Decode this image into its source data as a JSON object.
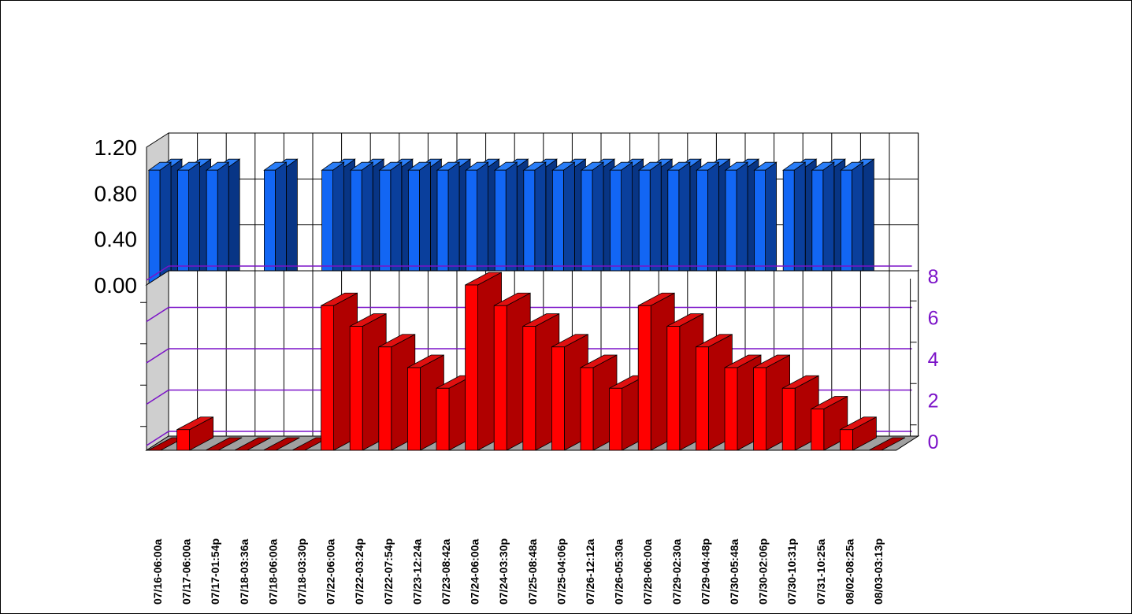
{
  "colors": {
    "top_front": "#1266f4",
    "top_side": "#0a3f9c",
    "top_top": "#2a7ef8",
    "bottom_front": "#ff0000",
    "bottom_side": "#b00000",
    "bottom_top": "#e01010",
    "bottom_axis": "#7b12c8",
    "wall": "#cfcfcf",
    "floor": "#a0a0a0"
  },
  "chart_data": [
    {
      "type": "bar",
      "style": "3d",
      "panel": "top",
      "categories": [
        "07/16-06:00a",
        "07/17-06:00a",
        "07/17-01:54p",
        "07/18-03:36a",
        "07/18-06:00a",
        "07/18-03:30p",
        "07/22-06:00a",
        "07/22-03:24p",
        "07/22-07:54p",
        "07/23-12:24a",
        "07/23-08:42a",
        "07/24-06:00a",
        "07/24-03:30p",
        "07/25-08:48a",
        "07/25-04:06p",
        "07/26-12:12a",
        "07/26-05:30a",
        "07/28-06:00a",
        "07/29-02:30a",
        "07/29-04:48p",
        "07/30-05:48a",
        "07/30-02:06p",
        "07/30-10:31p",
        "07/31-10:25a",
        "08/02-08:25a",
        "08/03-03:13p"
      ],
      "series": [
        {
          "values": [
            1,
            1,
            1,
            0,
            1,
            0,
            1,
            1,
            1,
            1,
            1,
            1,
            1,
            1,
            1,
            1,
            1,
            1,
            1,
            1,
            1,
            1,
            1,
            1,
            1,
            0
          ]
        },
        {
          "values": [
            1,
            1,
            1,
            0,
            1,
            0,
            1,
            1,
            1,
            1,
            1,
            1,
            1,
            1,
            1,
            1,
            1,
            1,
            1,
            1,
            1,
            0,
            1,
            1,
            1,
            0
          ]
        }
      ],
      "yticks": [
        "0.00",
        "0.40",
        "0.80",
        "1.20"
      ],
      "ylim": [
        0,
        1.2
      ],
      "grid": true
    },
    {
      "type": "bar",
      "style": "3d",
      "panel": "bottom",
      "categories": [
        "07/16-06:00a",
        "07/17-06:00a",
        "07/17-01:54p",
        "07/18-03:36a",
        "07/18-06:00a",
        "07/18-03:30p",
        "07/22-06:00a",
        "07/22-03:24p",
        "07/22-07:54p",
        "07/23-12:24a",
        "07/23-08:42a",
        "07/24-06:00a",
        "07/24-03:30p",
        "07/25-08:48a",
        "07/25-04:06p",
        "07/26-12:12a",
        "07/26-05:30a",
        "07/28-06:00a",
        "07/29-02:30a",
        "07/29-04:48p",
        "07/30-05:48a",
        "07/30-02:06p",
        "07/30-10:31p",
        "07/31-10:25a",
        "08/02-08:25a",
        "08/03-03:13p"
      ],
      "values": [
        0,
        1,
        0,
        0,
        0,
        0,
        7,
        6,
        5,
        4,
        3,
        8,
        7,
        6,
        5,
        4,
        3,
        7,
        6,
        5,
        4,
        4,
        3,
        2,
        1,
        0
      ],
      "yticks": [
        "0",
        "2",
        "4",
        "6",
        "8"
      ],
      "ylim": [
        0,
        8
      ],
      "axis_side": "right",
      "grid": true
    }
  ]
}
